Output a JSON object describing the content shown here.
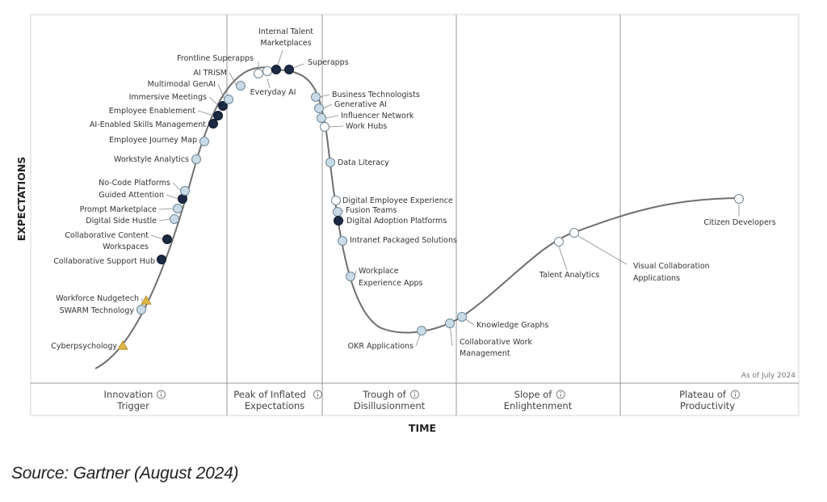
{
  "chart_data": {
    "type": "hype-cycle",
    "xlabel": "TIME",
    "ylabel": "EXPECTATIONS",
    "as_of": "As of July 2024",
    "phases": [
      {
        "line1": "Innovation",
        "line2": "Trigger"
      },
      {
        "line1": "Peak of Inflated",
        "line2": "Expectations"
      },
      {
        "line1": "Trough of",
        "line2": "Disillusionment"
      },
      {
        "line1": "Slope of",
        "line2": "Enlightenment"
      },
      {
        "line1": "Plateau of",
        "line2": "Productivity"
      }
    ],
    "legend_marker_types": [
      "light",
      "dark",
      "white",
      "triangle"
    ],
    "marker_colors": {
      "light": "#c9dbe6",
      "dark": "#1c2a44",
      "white": "#ffffff",
      "triangle": "#e0b84a"
    },
    "technologies": [
      {
        "name": "Cyberpsychology",
        "phase": 1,
        "marker": "triangle"
      },
      {
        "name": "SWARM Technology",
        "phase": 1,
        "marker": "light"
      },
      {
        "name": "Workforce Nudgetech",
        "phase": 1,
        "marker": "triangle"
      },
      {
        "name": "Collaborative Support Hub",
        "phase": 1,
        "marker": "dark"
      },
      {
        "name": "Collaborative Content Workspaces",
        "phase": 1,
        "marker": "dark"
      },
      {
        "name": "Digital Side Hustle",
        "phase": 1,
        "marker": "light"
      },
      {
        "name": "Prompt Marketplace",
        "phase": 1,
        "marker": "light"
      },
      {
        "name": "Guided Attention",
        "phase": 1,
        "marker": "dark"
      },
      {
        "name": "No-Code Platforms",
        "phase": 1,
        "marker": "light"
      },
      {
        "name": "Workstyle Analytics",
        "phase": 1,
        "marker": "light"
      },
      {
        "name": "Employee Journey Map",
        "phase": 1,
        "marker": "light"
      },
      {
        "name": "AI-Enabled Skills Management",
        "phase": 1,
        "marker": "dark"
      },
      {
        "name": "Employee Enablement",
        "phase": 1,
        "marker": "dark"
      },
      {
        "name": "Immersive Meetings",
        "phase": 1,
        "marker": "dark"
      },
      {
        "name": "Multimodal GenAI",
        "phase": 2,
        "marker": "light"
      },
      {
        "name": "AI TRiSM",
        "phase": 2,
        "marker": "light"
      },
      {
        "name": "Frontline Superapps",
        "phase": 2,
        "marker": "white"
      },
      {
        "name": "Everyday AI",
        "phase": 2,
        "marker": "white"
      },
      {
        "name": "Internal Talent Marketplaces",
        "phase": 2,
        "marker": "dark"
      },
      {
        "name": "Superapps",
        "phase": 2,
        "marker": "dark"
      },
      {
        "name": "Business Technologists",
        "phase": 3,
        "marker": "light"
      },
      {
        "name": "Generative AI",
        "phase": 3,
        "marker": "light"
      },
      {
        "name": "Influencer Network",
        "phase": 3,
        "marker": "light"
      },
      {
        "name": "Work Hubs",
        "phase": 3,
        "marker": "white"
      },
      {
        "name": "Data Literacy",
        "phase": 3,
        "marker": "light"
      },
      {
        "name": "Digital Employee Experience",
        "phase": 3,
        "marker": "white"
      },
      {
        "name": "Fusion Teams",
        "phase": 3,
        "marker": "light"
      },
      {
        "name": "Digital Adoption Platforms",
        "phase": 3,
        "marker": "dark"
      },
      {
        "name": "Intranet Packaged Solutions",
        "phase": 3,
        "marker": "light"
      },
      {
        "name": "Workplace Experience Apps",
        "phase": 3,
        "marker": "light"
      },
      {
        "name": "OKR Applications",
        "phase": 3,
        "marker": "light"
      },
      {
        "name": "Collaborative Work Management",
        "phase": 4,
        "marker": "light"
      },
      {
        "name": "Knowledge Graphs",
        "phase": 4,
        "marker": "light"
      },
      {
        "name": "Talent Analytics",
        "phase": 4,
        "marker": "white"
      },
      {
        "name": "Visual Collaboration Applications",
        "phase": 4,
        "marker": "white"
      },
      {
        "name": "Citizen Developers",
        "phase": 5,
        "marker": "white"
      }
    ]
  },
  "source": "Source: Gartner (August 2024)"
}
